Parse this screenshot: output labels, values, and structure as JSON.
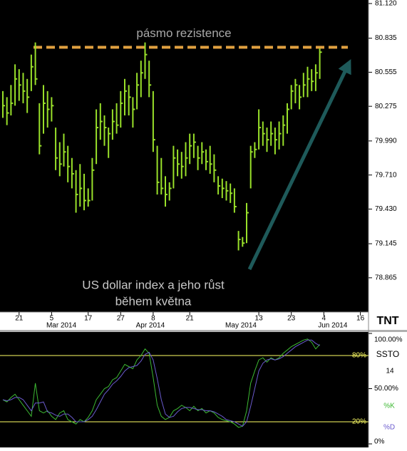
{
  "chart_data": [
    {
      "type": "hlc",
      "color": "#99e02a",
      "high": [
        80.4,
        80.35,
        80.45,
        80.62,
        80.58,
        80.55,
        80.5,
        80.7,
        80.8,
        80.3,
        80.45,
        80.4,
        80.35,
        80.1,
        79.98,
        80.05,
        79.95,
        79.85,
        79.75,
        79.8,
        79.72,
        79.6,
        79.85,
        80.25,
        80.3,
        80.2,
        80.1,
        80.25,
        80.3,
        80.4,
        80.5,
        80.45,
        80.35,
        80.55,
        80.65,
        80.8,
        80.65,
        80.4,
        79.95,
        79.85,
        79.7,
        79.65,
        79.95,
        79.92,
        79.9,
        79.98,
        80.05,
        80.05,
        79.95,
        79.98,
        79.92,
        79.95,
        79.88,
        79.7,
        79.68,
        79.66,
        79.64,
        79.6,
        79.25,
        79.2,
        79.48,
        79.95,
        79.98,
        80.25,
        80.15,
        80.1,
        80.15,
        80.1,
        80.15,
        80.2,
        80.3,
        80.45,
        80.5,
        80.45,
        80.55,
        80.6,
        80.58,
        80.62,
        80.75
      ],
      "low": [
        80.18,
        80.12,
        80.2,
        80.28,
        80.32,
        80.3,
        80.22,
        80.4,
        80.45,
        79.88,
        80.05,
        80.1,
        80.15,
        79.75,
        79.7,
        79.78,
        79.65,
        79.6,
        79.4,
        79.45,
        79.42,
        79.45,
        79.5,
        79.8,
        80.0,
        79.95,
        79.85,
        80.0,
        80.05,
        80.1,
        80.2,
        80.2,
        80.1,
        80.25,
        80.35,
        80.5,
        80.35,
        79.9,
        79.55,
        79.55,
        79.45,
        79.5,
        79.6,
        79.7,
        79.68,
        79.7,
        79.8,
        79.85,
        79.75,
        79.8,
        79.75,
        79.72,
        79.65,
        79.55,
        79.52,
        79.5,
        79.48,
        79.4,
        79.09,
        79.12,
        79.15,
        79.6,
        79.85,
        79.92,
        79.95,
        79.9,
        79.95,
        79.88,
        79.92,
        79.95,
        80.05,
        80.25,
        80.3,
        80.25,
        80.35,
        80.35,
        80.4,
        80.4,
        80.5
      ],
      "close": [
        80.28,
        80.22,
        80.3,
        80.5,
        80.45,
        80.4,
        80.35,
        80.6,
        80.5,
        79.95,
        80.3,
        80.25,
        80.28,
        79.85,
        79.8,
        79.9,
        79.78,
        79.72,
        79.55,
        79.6,
        79.5,
        79.5,
        79.75,
        80.1,
        80.15,
        80.1,
        80.05,
        80.15,
        80.12,
        80.3,
        80.4,
        80.35,
        80.25,
        80.45,
        80.55,
        80.7,
        80.45,
        80.0,
        79.65,
        79.6,
        79.55,
        79.6,
        79.85,
        79.8,
        79.78,
        79.85,
        79.95,
        79.98,
        79.85,
        79.9,
        79.82,
        79.8,
        79.75,
        79.62,
        79.6,
        79.58,
        79.56,
        79.45,
        79.18,
        79.15,
        79.4,
        79.9,
        79.92,
        80.1,
        80.05,
        80.0,
        80.05,
        80.0,
        80.05,
        80.12,
        80.25,
        80.4,
        80.45,
        80.35,
        80.45,
        80.5,
        80.48,
        80.55,
        80.72
      ],
      "xlim": [
        -0.7,
        90
      ],
      "xticks": [
        {
          "value": 4,
          "label": "21"
        },
        {
          "value": 12,
          "label": "5"
        },
        {
          "value": 21,
          "label": "17"
        },
        {
          "value": 29,
          "label": "27"
        },
        {
          "value": 37,
          "label": "8"
        },
        {
          "value": 46,
          "label": "21"
        },
        {
          "value": 63,
          "label": "13"
        },
        {
          "value": 71,
          "label": "23"
        },
        {
          "value": 79,
          "label": "4"
        },
        {
          "value": 88,
          "label": "16"
        }
      ],
      "month_labels": [
        {
          "value": 14.4,
          "label": "Mar 2014"
        },
        {
          "value": 36.3,
          "label": "Apr 2014"
        },
        {
          "value": 58.6,
          "label": "May 2014"
        },
        {
          "value": 81.2,
          "label": "Jun 2014"
        }
      ],
      "ylim": [
        78.583,
        81.149
      ],
      "yticks": [
        {
          "value": 81.12,
          "label": "81.120"
        },
        80.835,
        80.555,
        80.275,
        {
          "value": 79.99,
          "label": "79.990"
        },
        {
          "value": 79.71,
          "label": "79.710"
        },
        {
          "value": 79.43,
          "label": "79.430"
        },
        79.145,
        78.865
      ],
      "resistance": {
        "label": "pásmo rezistence",
        "value": 80.76,
        "color": "#e0a040"
      },
      "annotation": [
        "US dollar index a jeho růst",
        "během května"
      ],
      "logo": "TNT"
    },
    {
      "type": "stochastic",
      "label": "SSTO",
      "period": "14",
      "series": [
        {
          "name": "%K",
          "color": "#3cb832",
          "values": [
            40,
            38,
            42,
            45,
            40,
            35,
            30,
            25,
            55,
            30,
            28,
            30,
            25,
            22,
            28,
            30,
            22,
            20,
            18,
            22,
            20,
            24,
            30,
            40,
            45,
            50,
            52,
            58,
            60,
            66,
            72,
            70,
            68,
            76,
            80,
            86,
            82,
            60,
            35,
            25,
            22,
            24,
            30,
            32,
            35,
            33,
            30,
            34,
            30,
            32,
            28,
            30,
            28,
            24,
            22,
            21,
            20,
            18,
            15,
            16,
            30,
            55,
            66,
            76,
            78,
            74,
            78,
            76,
            78,
            82,
            85,
            88,
            90,
            92,
            94,
            95,
            92,
            86,
            90
          ]
        },
        {
          "name": "%D",
          "color": "#6a5acd",
          "values": [
            40,
            39,
            40,
            42,
            42,
            40,
            35,
            30,
            37,
            37,
            38,
            29,
            28,
            26,
            25,
            27,
            27,
            24,
            20,
            20,
            20,
            22,
            25,
            31,
            38,
            45,
            49,
            54,
            57,
            61,
            66,
            69,
            70,
            71,
            75,
            81,
            83,
            76,
            59,
            40,
            27,
            24,
            25,
            29,
            32,
            33,
            33,
            32,
            31,
            31,
            30,
            30,
            29,
            27,
            25,
            22,
            21,
            20,
            18,
            16,
            20,
            34,
            50,
            66,
            73,
            76,
            77,
            76,
            77,
            79,
            82,
            85,
            88,
            90,
            92,
            94,
            94,
            91,
            89
          ]
        }
      ],
      "xlim": [
        -0.7,
        90
      ],
      "ylim": [
        0,
        100
      ],
      "yticks": [
        {
          "value": 100,
          "label": "100.00%"
        },
        {
          "value": 50,
          "label": "50.00%"
        },
        {
          "value": 0,
          "label": "0%"
        }
      ],
      "levels": [
        {
          "value": 80,
          "label": "80%"
        },
        {
          "value": 20,
          "label": "20%"
        }
      ],
      "level_color": "#ffff66"
    }
  ]
}
